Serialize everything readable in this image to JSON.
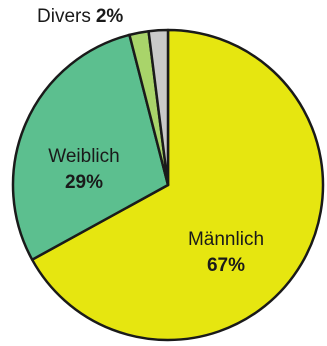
{
  "chart_data": {
    "type": "pie",
    "title": "",
    "slices": [
      {
        "label": "Männlich",
        "value": 67,
        "value_label": "67%",
        "color": "#e6e610"
      },
      {
        "label": "Weiblich",
        "value": 29,
        "value_label": "29%",
        "color": "#5cbf8f"
      },
      {
        "label": "",
        "value": 2,
        "value_label": "",
        "color": "#a9d46a"
      },
      {
        "label": "Divers",
        "value": 2,
        "value_label": "2%",
        "color": "#c9c9c9"
      }
    ],
    "outline_color": "#1a1a1a",
    "start": "top",
    "direction": "clockwise"
  }
}
